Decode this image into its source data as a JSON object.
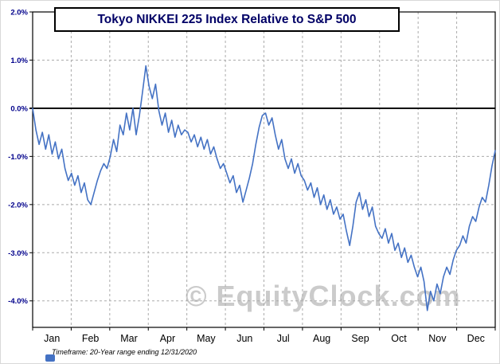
{
  "title": "Tokyo NIKKEI 225 Index Relative to S&P 500",
  "watermark": "© EquityClock.com",
  "footnote": "Timeframe: 20-Year range ending 12/31/2020",
  "colors": {
    "line": "#4472C4",
    "title_text": "#000066",
    "y_axis_label": "#00008B",
    "x_axis_label": "#000000",
    "grid": "#ababab",
    "zero_line": "#000000",
    "plot_border": "#000000",
    "watermark": "#cbcbcb",
    "legend_marker": "#4472C4"
  },
  "chart_data": {
    "type": "line",
    "title": "Tokyo NIKKEI 225 Index Relative to S&P 500",
    "xlabel": "",
    "ylabel": "",
    "x_categories": [
      "Jan",
      "Feb",
      "Mar",
      "Apr",
      "May",
      "Jun",
      "Jul",
      "Aug",
      "Sep",
      "Oct",
      "Nov",
      "Dec"
    ],
    "y_axis": {
      "min": -4.55,
      "max": 2.0,
      "unit": "%",
      "tick_values": [
        2,
        1,
        0,
        -1,
        -2,
        -3,
        -4
      ],
      "tick_labels": [
        "2.0%",
        "1.0%",
        "0.0%",
        "-1.0%",
        "-2.0%",
        "-3.0%",
        "-4.0%"
      ]
    },
    "grid": true,
    "zero_line": true,
    "legend_position": "none",
    "series": [
      {
        "name": "Tokyo NIKKEI 225 Index Relative to S&P 500",
        "points_per_month": 12,
        "values": [
          0.0,
          -0.45,
          -0.75,
          -0.5,
          -0.85,
          -0.55,
          -0.95,
          -0.7,
          -1.05,
          -0.85,
          -1.25,
          -1.5,
          -1.35,
          -1.6,
          -1.4,
          -1.75,
          -1.55,
          -1.9,
          -2.0,
          -1.75,
          -1.5,
          -1.3,
          -1.15,
          -1.25,
          -1.0,
          -0.65,
          -0.9,
          -0.35,
          -0.55,
          -0.1,
          -0.45,
          0.0,
          -0.55,
          -0.15,
          0.35,
          0.88,
          0.45,
          0.2,
          0.5,
          -0.05,
          -0.35,
          -0.1,
          -0.5,
          -0.25,
          -0.6,
          -0.35,
          -0.55,
          -0.45,
          -0.5,
          -0.7,
          -0.55,
          -0.8,
          -0.6,
          -0.85,
          -0.65,
          -0.95,
          -0.8,
          -1.05,
          -1.25,
          -1.15,
          -1.35,
          -1.55,
          -1.4,
          -1.75,
          -1.6,
          -1.95,
          -1.7,
          -1.45,
          -1.15,
          -0.75,
          -0.4,
          -0.15,
          -0.1,
          -0.35,
          -0.2,
          -0.55,
          -0.85,
          -0.65,
          -1.05,
          -1.25,
          -1.05,
          -1.35,
          -1.15,
          -1.4,
          -1.5,
          -1.7,
          -1.55,
          -1.85,
          -1.65,
          -2.0,
          -1.8,
          -2.1,
          -1.9,
          -2.2,
          -2.05,
          -2.3,
          -2.2,
          -2.55,
          -2.85,
          -2.45,
          -1.95,
          -1.75,
          -2.1,
          -1.9,
          -2.25,
          -2.05,
          -2.45,
          -2.6,
          -2.7,
          -2.5,
          -2.8,
          -2.6,
          -2.95,
          -2.8,
          -3.1,
          -2.9,
          -3.2,
          -3.05,
          -3.3,
          -3.5,
          -3.3,
          -3.6,
          -4.2,
          -3.8,
          -4.0,
          -3.65,
          -3.85,
          -3.5,
          -3.3,
          -3.45,
          -3.15,
          -2.95,
          -2.85,
          -2.65,
          -2.8,
          -2.45,
          -2.25,
          -2.35,
          -2.05,
          -1.85,
          -1.95,
          -1.6,
          -1.2,
          -0.88
        ]
      }
    ]
  }
}
